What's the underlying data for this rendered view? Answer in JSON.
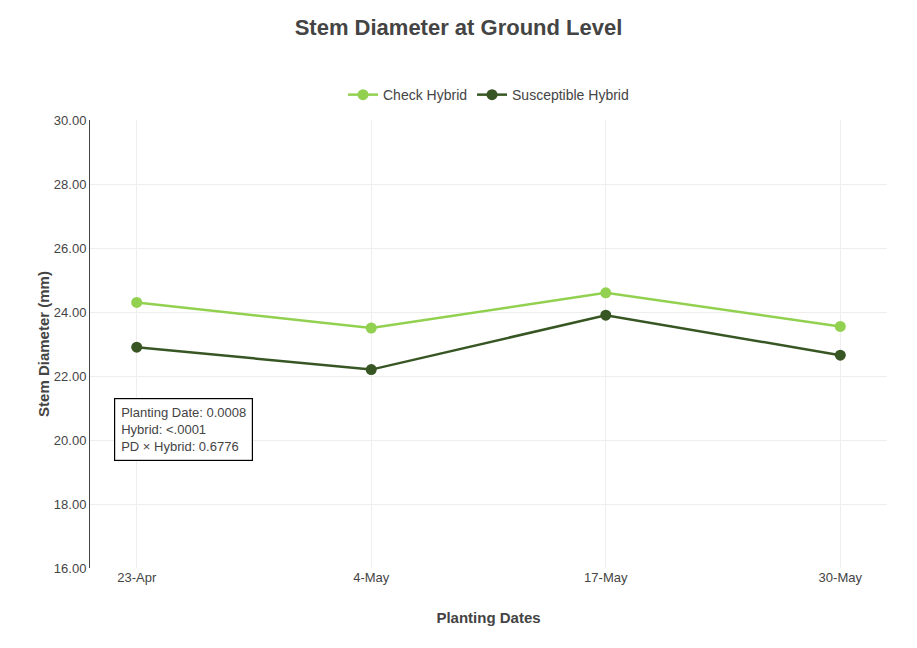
{
  "chart_data": {
    "type": "line",
    "title": "Stem Diameter at Ground Level",
    "x_label": "Planting Dates",
    "y_label": "Stem Diameter (mm)",
    "categories": [
      "23-Apr",
      "4-May",
      "17-May",
      "30-May"
    ],
    "series": [
      {
        "name": "Check Hybrid",
        "color": "#92D050",
        "marker": "circle",
        "values": [
          24.3,
          23.5,
          24.6,
          23.55
        ]
      },
      {
        "name": "Susceptible Hybrid",
        "color": "#375623",
        "marker": "circle",
        "values": [
          22.9,
          22.2,
          23.9,
          22.65
        ]
      }
    ],
    "ylim": [
      16.0,
      30.0
    ],
    "yticks": [
      {
        "value": 16.0,
        "label": "16.00"
      },
      {
        "value": 18.0,
        "label": "18.00"
      },
      {
        "value": 20.0,
        "label": "20.00"
      },
      {
        "value": 22.0,
        "label": "22.00"
      },
      {
        "value": 24.0,
        "label": "24.00"
      },
      {
        "value": 26.0,
        "label": "26.00"
      },
      {
        "value": 28.0,
        "label": "28.00"
      },
      {
        "value": 30.0,
        "label": "30.00"
      }
    ],
    "annotations": [
      "Planting Date: 0.0008\nHybrid: <.0001\nPD × Hybrid: 0.6776"
    ],
    "grid": true,
    "legend": "top"
  }
}
